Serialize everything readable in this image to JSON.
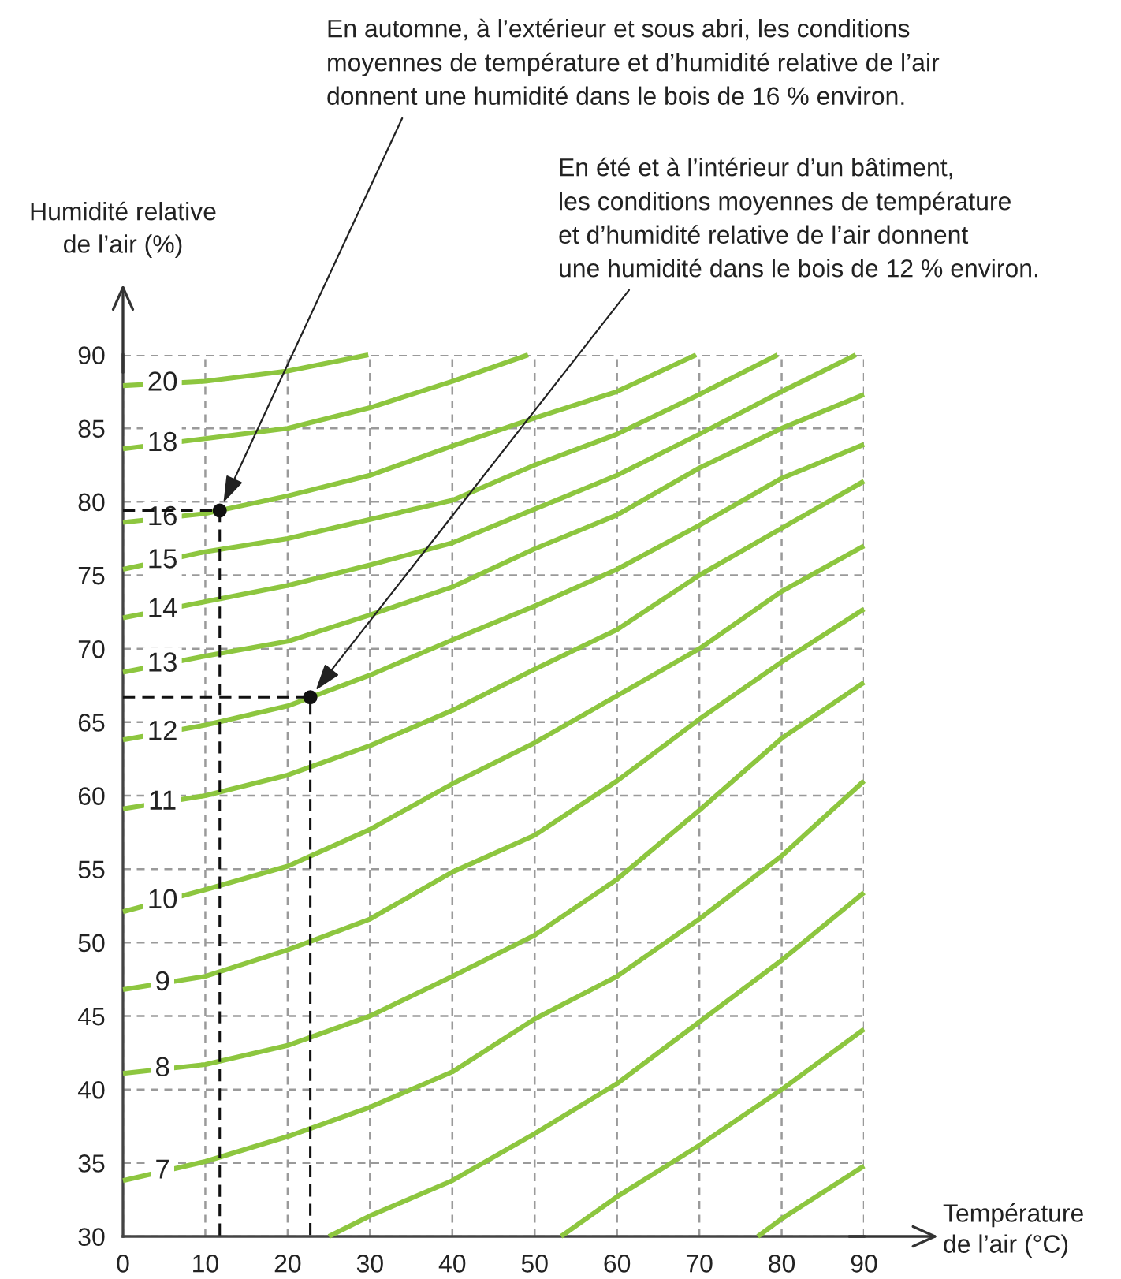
{
  "chart_data": {
    "type": "line",
    "xlabel": "Température\nde l’air (°C)",
    "ylabel": "Humidité relative\nde l’air (%)",
    "xlim": [
      0,
      90
    ],
    "ylim": [
      30,
      90
    ],
    "xticks": [
      0,
      10,
      20,
      30,
      40,
      50,
      60,
      70,
      80,
      90
    ],
    "yticks": [
      30,
      35,
      40,
      45,
      50,
      55,
      60,
      65,
      70,
      75,
      80,
      85,
      90
    ],
    "grid": true,
    "line_style": "solid",
    "series": [
      {
        "name": "20",
        "color": "#8dc63f",
        "x": [
          0,
          10,
          20,
          29.8
        ],
        "values": [
          87.9,
          88.2,
          88.9,
          90
        ]
      },
      {
        "name": "18",
        "color": "#8dc63f",
        "x": [
          0,
          10,
          20,
          30,
          40,
          49.2
        ],
        "values": [
          83.6,
          84.3,
          85.0,
          86.4,
          88.2,
          90
        ]
      },
      {
        "name": "16",
        "color": "#8dc63f",
        "x": [
          0,
          10,
          20,
          30,
          40,
          50,
          60,
          69.6
        ],
        "values": [
          78.6,
          79.2,
          80.4,
          81.8,
          83.8,
          85.7,
          87.5,
          90
        ]
      },
      {
        "name": "15",
        "color": "#8dc63f",
        "x": [
          0,
          10,
          20,
          30,
          40,
          50,
          60,
          70,
          79.5
        ],
        "values": [
          75.4,
          76.6,
          77.5,
          78.8,
          80.1,
          82.5,
          84.6,
          87.3,
          90
        ]
      },
      {
        "name": "14",
        "color": "#8dc63f",
        "x": [
          0,
          10,
          20,
          30,
          40,
          50,
          60,
          70,
          80,
          89
        ],
        "values": [
          72.1,
          73.2,
          74.3,
          75.7,
          77.2,
          79.5,
          81.8,
          84.6,
          87.5,
          90
        ]
      },
      {
        "name": "13",
        "color": "#8dc63f",
        "x": [
          0,
          10,
          20,
          30,
          40,
          50,
          60,
          70,
          80,
          90
        ],
        "values": [
          68.4,
          69.5,
          70.5,
          72.3,
          74.2,
          76.8,
          79.1,
          82.3,
          85.0,
          87.3
        ]
      },
      {
        "name": "12",
        "color": "#8dc63f",
        "x": [
          0,
          10,
          20,
          30,
          40,
          50,
          60,
          70,
          80,
          90
        ],
        "values": [
          63.8,
          64.8,
          66.1,
          68.2,
          70.6,
          72.9,
          75.4,
          78.4,
          81.6,
          83.9
        ]
      },
      {
        "name": "11",
        "color": "#8dc63f",
        "x": [
          0,
          10,
          20,
          30,
          40,
          50,
          60,
          70,
          80,
          90
        ],
        "values": [
          59.1,
          60.0,
          61.4,
          63.4,
          65.8,
          68.6,
          71.3,
          75.0,
          78.2,
          81.4
        ]
      },
      {
        "name": "10",
        "color": "#8dc63f",
        "x": [
          0,
          10,
          20,
          30,
          40,
          50,
          60,
          70,
          80,
          90
        ],
        "values": [
          52.1,
          53.6,
          55.2,
          57.7,
          60.8,
          63.6,
          66.8,
          70.0,
          73.9,
          77.0
        ]
      },
      {
        "name": "9",
        "color": "#8dc63f",
        "x": [
          0,
          10,
          20,
          30,
          40,
          50,
          60,
          70,
          80,
          90
        ],
        "values": [
          46.8,
          47.7,
          49.5,
          51.6,
          54.8,
          57.3,
          61.0,
          65.2,
          69.1,
          72.7
        ]
      },
      {
        "name": "8",
        "color": "#8dc63f",
        "x": [
          0,
          10,
          20,
          30,
          40,
          50,
          60,
          70,
          80,
          90
        ],
        "values": [
          41.1,
          41.7,
          43.0,
          45.0,
          47.7,
          50.5,
          54.3,
          59.0,
          63.9,
          67.7
        ]
      },
      {
        "name": "7",
        "color": "#8dc63f",
        "x": [
          0,
          10,
          20,
          30,
          40,
          50,
          60,
          70,
          80,
          90
        ],
        "values": [
          33.8,
          35.1,
          36.8,
          38.8,
          41.2,
          44.8,
          47.7,
          51.6,
          55.9,
          61.0
        ]
      },
      {
        "color": "#8dc63f",
        "x": [
          25,
          30,
          40,
          50,
          60,
          70,
          80,
          90
        ],
        "values": [
          30,
          31.4,
          33.8,
          37.0,
          40.4,
          44.6,
          48.8,
          53.4
        ]
      },
      {
        "color": "#8dc63f",
        "x": [
          53.2,
          60,
          70,
          80,
          90
        ],
        "values": [
          30,
          32.7,
          36.2,
          40.0,
          44.1
        ]
      },
      {
        "color": "#8dc63f",
        "x": [
          77.1,
          80,
          90
        ],
        "values": [
          30,
          31.2,
          34.8
        ]
      },
      {
        "color": "#111111",
        "line_style": "dashed",
        "x": [
          0,
          11.75,
          11.75
        ],
        "values": [
          79.4,
          79.4,
          30
        ]
      },
      {
        "color": "#111111",
        "line_style": "dashed",
        "x": [
          0,
          22.75,
          22.75
        ],
        "values": [
          66.7,
          66.7,
          30
        ]
      },
      {
        "type": "scatter",
        "color": "#111111",
        "marker": "circle",
        "x": [
          11.75,
          22.75
        ],
        "values": [
          79.4,
          66.7
        ]
      }
    ],
    "annotations": [
      {
        "text": "En automne, à l’extérieur et sous abri, les conditions\nmoyennes de température et d’humidité relative de l’air\ndonnent une humidité dans le bois de 16 % environ.",
        "x": 11.75,
        "y": 79.4
      },
      {
        "text": "En été et à l’intérieur d’un bâtiment,\nles conditions moyennes de température\net d’humidité relative de l’air donnent\nune humidité dans le bois de 12 % environ.",
        "x": 22.75,
        "y": 66.7
      }
    ]
  }
}
